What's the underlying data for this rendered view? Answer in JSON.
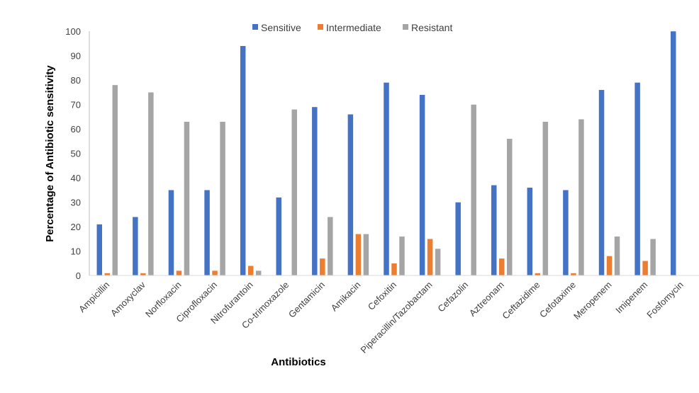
{
  "chart_data": {
    "type": "bar",
    "title": "",
    "xlabel": "Antibiotics",
    "ylabel": "Percentage of Antibiotic sensitivity",
    "ylim": [
      0,
      100
    ],
    "yticks": [
      0,
      10,
      20,
      30,
      40,
      50,
      60,
      70,
      80,
      90,
      100
    ],
    "grid": false,
    "legend_position": "top",
    "categories": [
      "Ampicillin",
      "Amoxyclav",
      "Norfloxacin",
      "Ciprofloxacin",
      "Nitrofurantoin",
      "Co-trimoxazole",
      "Gentamicin",
      "Amikacin",
      "Cefoxitin",
      "Piperacillin/Tazobactam",
      "Cefazolin",
      "Aztreonam",
      "Ceftazidime",
      "Cefotaxime",
      "Meropenem",
      "Imipenem",
      "Fosfomycin"
    ],
    "series": [
      {
        "name": "Sensitive",
        "color": "#4472C4",
        "values": [
          21,
          24,
          35,
          35,
          94,
          32,
          69,
          66,
          79,
          74,
          30,
          37,
          36,
          35,
          76,
          79,
          100
        ]
      },
      {
        "name": "Intermediate",
        "color": "#ED7D31",
        "values": [
          1,
          1,
          2,
          2,
          4,
          0,
          7,
          17,
          5,
          15,
          0,
          7,
          1,
          1,
          8,
          6,
          0
        ]
      },
      {
        "name": "Resistant",
        "color": "#A5A5A5",
        "values": [
          78,
          75,
          63,
          63,
          2,
          68,
          24,
          17,
          16,
          11,
          70,
          56,
          63,
          64,
          16,
          15,
          0
        ]
      }
    ]
  }
}
